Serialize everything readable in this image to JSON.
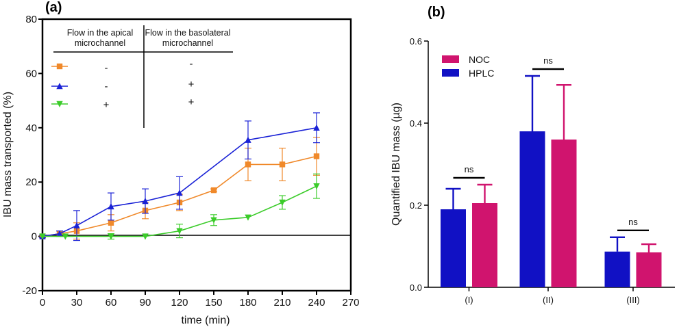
{
  "chart_data": [
    {
      "panel_label": "(a)",
      "type": "line",
      "xlabel": "time (min)",
      "ylabel": "IBU mass transported (%)",
      "xlim": [
        0,
        270
      ],
      "ylim": [
        -20,
        80
      ],
      "x_ticks": [
        0,
        30,
        60,
        90,
        120,
        150,
        180,
        210,
        240,
        270
      ],
      "y_ticks": [
        -20,
        0,
        20,
        40,
        60,
        80
      ],
      "table": {
        "headers": [
          "Flow in the apical microchannel",
          "Flow in the basolateral microchannel"
        ],
        "header_lines": [
          [
            "Flow in the apical",
            "microchannel"
          ],
          [
            "Flow in the basolateral",
            "microchannel"
          ]
        ],
        "rows": [
          [
            "-",
            "-"
          ],
          [
            "-",
            "+"
          ],
          [
            "+",
            "+"
          ]
        ]
      },
      "series": [
        {
          "marker": "square",
          "color": "#f0892a",
          "x": [
            0,
            15,
            30,
            60,
            90,
            120,
            150,
            180,
            210,
            240
          ],
          "y": [
            0,
            1,
            2,
            5,
            9.5,
            12.5,
            17,
            26.5,
            26.5,
            29.5
          ],
          "err": [
            0.5,
            1,
            3,
            3,
            3,
            3,
            0.5,
            6,
            6,
            7
          ]
        },
        {
          "marker": "triangle-up",
          "color": "#1a22d6",
          "x": [
            0,
            15,
            30,
            60,
            90,
            120,
            180,
            240
          ],
          "y": [
            0,
            1,
            4,
            11,
            13,
            16,
            35.5,
            40
          ],
          "err": [
            0.5,
            1,
            5.5,
            5,
            4.5,
            6,
            7,
            5.5
          ]
        },
        {
          "marker": "triangle-down",
          "color": "#3bcc2a",
          "x": [
            0,
            20,
            60,
            90,
            120,
            150,
            180,
            210,
            240
          ],
          "y": [
            0,
            0,
            0,
            0,
            2,
            6,
            7,
            12.5,
            18.5
          ],
          "err": [
            0,
            0,
            1,
            0,
            2.5,
            2,
            0,
            2.5,
            4.5
          ]
        }
      ]
    },
    {
      "panel_label": "(b)",
      "type": "bar",
      "ylabel": "Quantified IBU mass (µg)",
      "ylim": [
        0,
        0.6
      ],
      "y_tick_labels": [
        "0.0",
        "0.2",
        "0.4",
        "0.6"
      ],
      "categories": [
        "(I)",
        "(II)",
        "(III)"
      ],
      "series": [
        {
          "name": "HPLC",
          "color": "#1111c4",
          "values": [
            0.19,
            0.38,
            0.087
          ],
          "err": [
            0.05,
            0.135,
            0.035
          ]
        },
        {
          "name": "NOC",
          "color": "#d0146e",
          "values": [
            0.205,
            0.36,
            0.085
          ],
          "err": [
            0.045,
            0.133,
            0.02
          ]
        }
      ],
      "legend_order": [
        "NOC",
        "HPLC"
      ],
      "legend_placement": "top-left",
      "annotations": [
        "ns",
        "ns",
        "ns"
      ]
    }
  ]
}
